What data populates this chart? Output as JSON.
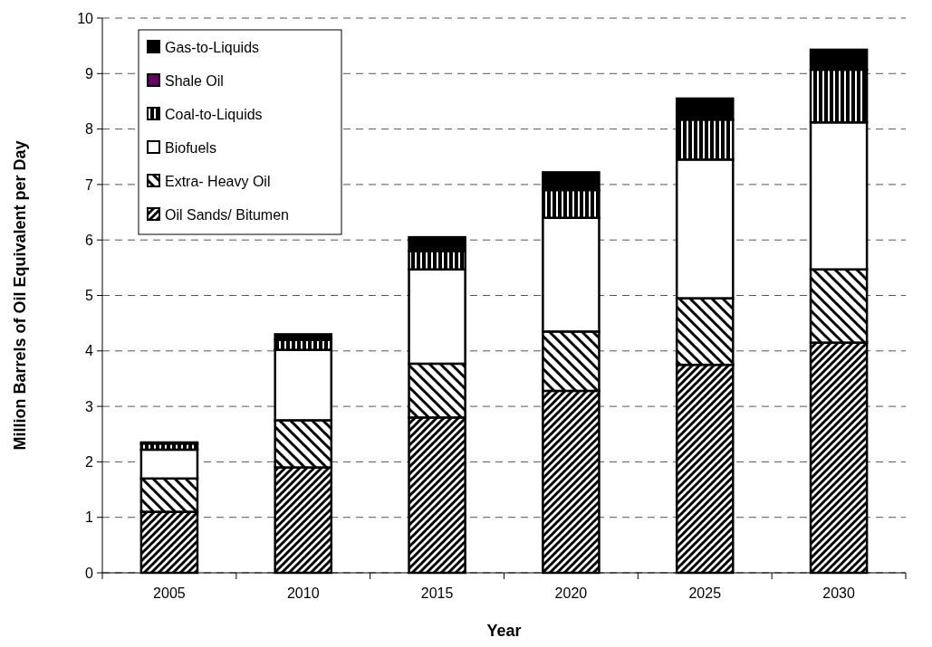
{
  "chart_data": {
    "type": "bar",
    "stacked": true,
    "xlabel": "Year",
    "ylabel": "Million Barrels of Oil Equivalent per Day",
    "categories": [
      "2005",
      "2010",
      "2015",
      "2020",
      "2025",
      "2030"
    ],
    "series": [
      {
        "name": "Oil Sands/ Bitumen",
        "color": "#000000",
        "values": [
          1.1,
          1.9,
          2.8,
          3.28,
          3.75,
          4.15
        ]
      },
      {
        "name": "Extra- Heavy Oil",
        "color": "#000000",
        "values": [
          0.6,
          0.85,
          0.97,
          1.07,
          1.2,
          1.32
        ]
      },
      {
        "name": "Biofuels",
        "color": "#ffffff",
        "values": [
          0.52,
          1.27,
          1.7,
          2.05,
          2.5,
          2.65
        ]
      },
      {
        "name": "Coal-to-Liquids",
        "color": "#000000",
        "values": [
          0.11,
          0.18,
          0.33,
          0.5,
          0.72,
          0.95
        ]
      },
      {
        "name": "Shale Oil",
        "color": "#660066",
        "values": [
          0,
          0,
          0,
          0,
          0,
          0
        ]
      },
      {
        "name": "Gas-to-Liquids",
        "color": "#000000",
        "values": [
          0.02,
          0.1,
          0.25,
          0.32,
          0.38,
          0.36
        ]
      }
    ],
    "ylim": [
      0,
      10
    ],
    "yticks": [
      0,
      1,
      2,
      3,
      4,
      5,
      6,
      7,
      8,
      9,
      10
    ],
    "grid": "y",
    "legend": "top left"
  }
}
